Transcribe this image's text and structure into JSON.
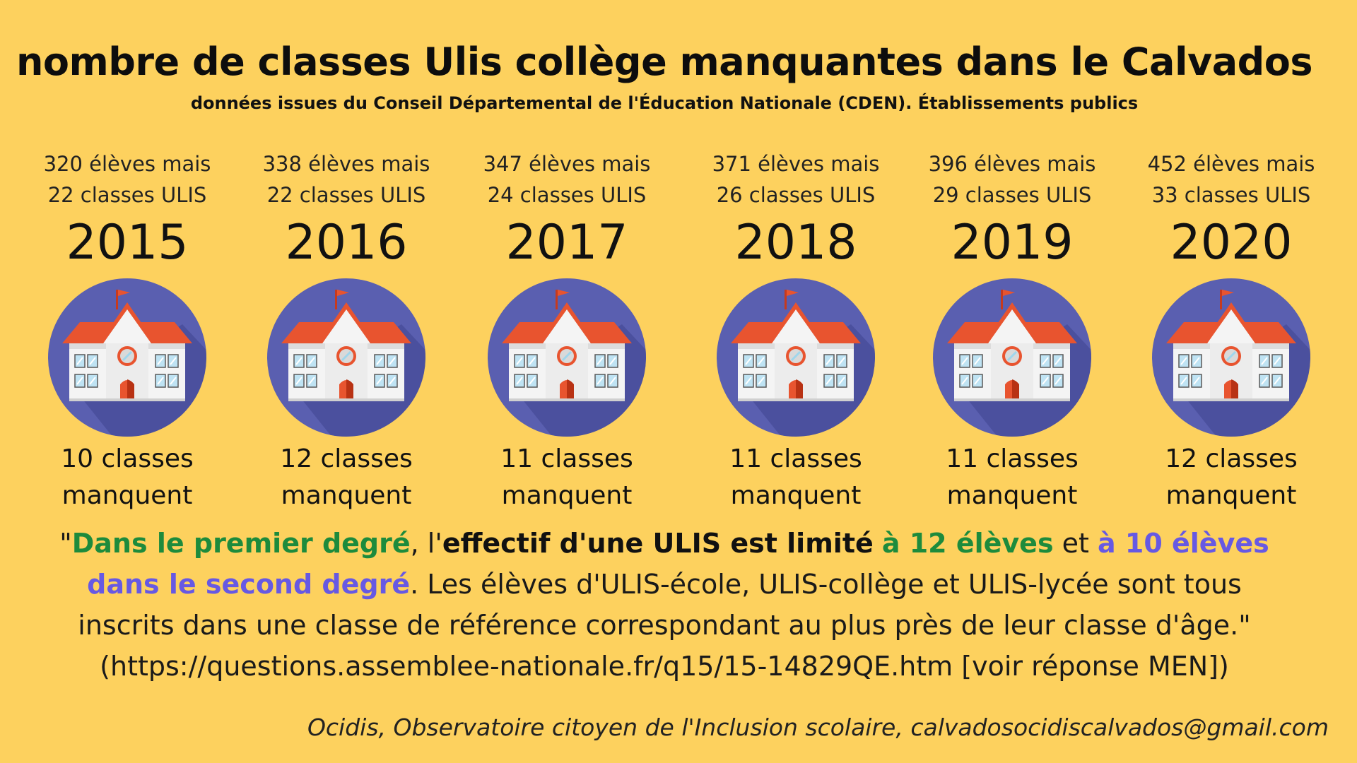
{
  "title": "nombre de classes Ulis collège manquantes dans le Calvados",
  "subtitle": "données issues du Conseil Départemental de l'Éducation Nationale (CDEN). Établissements publics",
  "years": [
    {
      "students_line1": "320 élèves mais",
      "students_line2": "22 classes ULIS",
      "year": "2015",
      "missing_line1": "10 classes",
      "missing_line2": "manquent"
    },
    {
      "students_line1": "338 élèves mais",
      "students_line2": "22 classes ULIS",
      "year": "2016",
      "missing_line1": "12 classes",
      "missing_line2": "manquent"
    },
    {
      "students_line1": "347 élèves mais",
      "students_line2": "24 classes ULIS",
      "year": "2017",
      "missing_line1": "11 classes",
      "missing_line2": "manquent"
    },
    {
      "students_line1": "371 élèves mais",
      "students_line2": "26 classes ULIS",
      "year": "2018",
      "missing_line1": "11 classes",
      "missing_line2": "manquent"
    },
    {
      "students_line1": "396 élèves mais",
      "students_line2": "29 classes ULIS",
      "year": "2019",
      "missing_line1": "11 classes",
      "missing_line2": "manquent"
    },
    {
      "students_line1": "452 élèves mais",
      "students_line2": "33 classes ULIS",
      "year": "2020",
      "missing_line1": "12 classes",
      "missing_line2": "manquent"
    }
  ],
  "quote": {
    "open": "\"",
    "part1": "Dans le premier degré",
    "part2": ", l'",
    "part3": "effectif d'une ULIS est limité",
    "part4": " ",
    "part5": "à 12 élèves",
    "part6": " et ",
    "part7": "à 10 élèves dans le second degré",
    "part8": ". Les élèves d'ULIS-école, ULIS-collège et ULIS-lycée sont tous inscrits dans une classe de référence correspondant au plus près de leur classe d'âge.\"",
    "source": "(https://questions.assemblee-nationale.fr/q15/15-14829QE.htm [voir réponse MEN])"
  },
  "credit": "Ocidis, Observatoire citoyen de l'Inclusion scolaire,  calvadosocidiscalvados@gmail.com",
  "icon": "school-building-icon",
  "colors": {
    "background": "#FDD15E",
    "circle": "#5A5FB0",
    "roof": "#E8542F",
    "green_text": "#1d8b3c",
    "purple_text": "#6759e3"
  }
}
